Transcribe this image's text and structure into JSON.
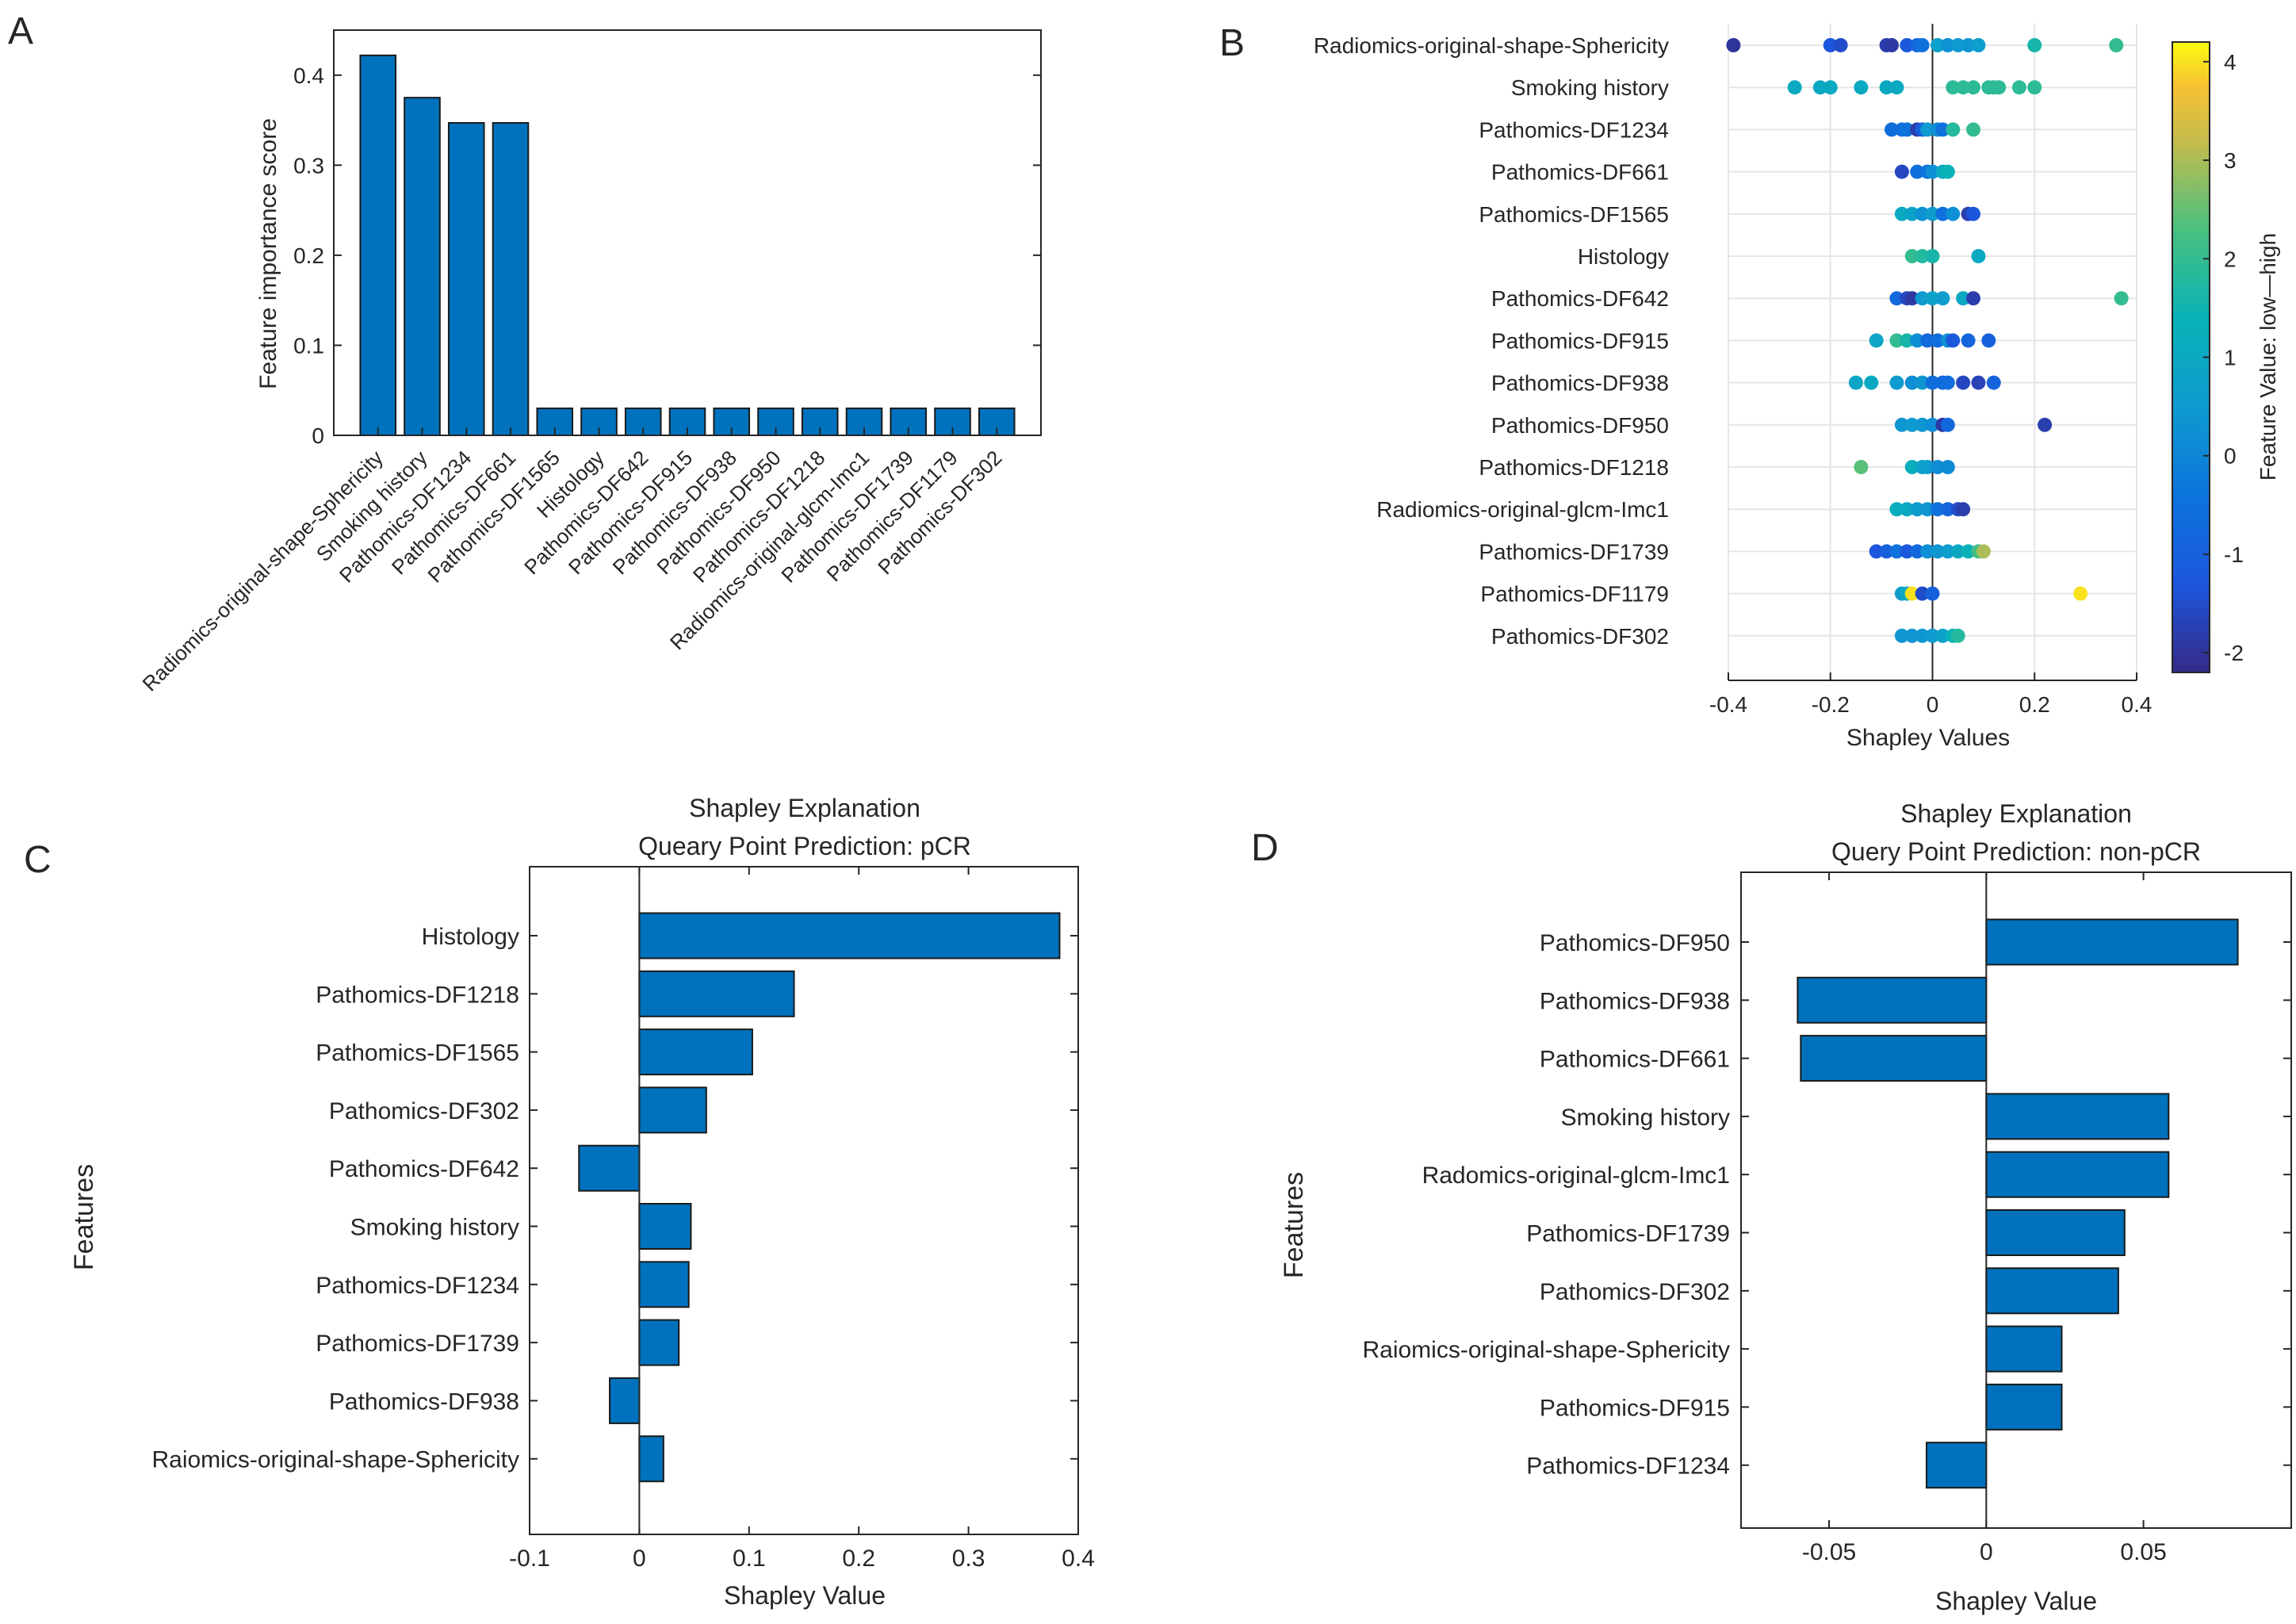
{
  "colors": {
    "bar": "#0072BD",
    "axis": "#262626",
    "grid": "#e6e6e6"
  },
  "panel_labels": [
    "A",
    "B",
    "C",
    "D"
  ],
  "chart_data": [
    {
      "panel": "A",
      "type": "bar",
      "title": "",
      "xlabel": "",
      "ylabel": "Feature importance score",
      "ylim": [
        0,
        0.45
      ],
      "yticks": [
        0,
        0.1,
        0.2,
        0.3,
        0.4
      ],
      "ytick_labels": [
        "0",
        "0.1",
        "0.2",
        "0.3",
        "0.4"
      ],
      "categories": [
        "Radiomics-original-shape-Sphericity",
        "Smoking history",
        "Pathomics-DF1234",
        "Pathomics-DF661",
        "Pathomics-DF1565",
        "Histology",
        "Pathomics-DF642",
        "Pathomics-DF915",
        "Pathomics-DF938",
        "Pathomics-DF950",
        "Pathomics-DF1218",
        "Radiomics-original-glcm-Imc1",
        "Pathomics-DF1739",
        "Pathomics-DF1179",
        "Pathomics-DF302"
      ],
      "values": [
        0.422,
        0.375,
        0.347,
        0.347,
        0.03,
        0.03,
        0.03,
        0.03,
        0.03,
        0.03,
        0.03,
        0.03,
        0.03,
        0.03,
        0.03
      ]
    },
    {
      "panel": "B",
      "type": "scatter",
      "title": "",
      "xlabel": "Shapley Values",
      "ylabel": "",
      "xlim": [
        -0.4,
        0.4
      ],
      "xticks": [
        -0.4,
        -0.2,
        0,
        0.2,
        0.4
      ],
      "xtick_labels": [
        "-0.4",
        "-0.2",
        "0",
        "0.2",
        "0.4"
      ],
      "colorbar": {
        "label": "Feature Value: low—high",
        "range": [
          -2.2,
          4.2
        ],
        "ticks": [
          -2,
          -1,
          0,
          1,
          2,
          3,
          4
        ],
        "tick_labels": [
          "-2",
          "-1",
          "0",
          "1",
          "2",
          "3",
          "4"
        ]
      },
      "categories": [
        "Radiomics-original-shape-Sphericity",
        "Smoking history",
        "Pathomics-DF1234",
        "Pathomics-DF661",
        "Pathomics-DF1565",
        "Histology",
        "Pathomics-DF642",
        "Pathomics-DF915",
        "Pathomics-DF938",
        "Pathomics-DF950",
        "Pathomics-DF1218",
        "Radiomics-original-glcm-Imc1",
        "Pathomics-DF1739",
        "Pathomics-DF1179",
        "Pathomics-DF302"
      ],
      "series": [
        {
          "name": "Radiomics-original-shape-Sphericity",
          "x": [
            -0.39,
            -0.2,
            -0.18,
            -0.09,
            -0.08,
            -0.05,
            -0.03,
            -0.02,
            0.01,
            0.03,
            0.05,
            0.07,
            0.09,
            0.2,
            0.36
          ],
          "c": [
            -2,
            -1.3,
            -1.5,
            -1.8,
            -1.9,
            -1.2,
            -0.8,
            -0.5,
            0.7,
            0.3,
            0.5,
            0.4,
            0.6,
            1.6,
            2.0
          ]
        },
        {
          "name": "Smoking history",
          "x": [
            -0.27,
            -0.22,
            -0.2,
            -0.14,
            -0.09,
            -0.07,
            0.04,
            0.06,
            0.08,
            0.11,
            0.12,
            0.13,
            0.17,
            0.2
          ],
          "c": [
            1.0,
            1.0,
            1.0,
            1.0,
            1.0,
            1.0,
            1.9,
            1.9,
            1.9,
            1.9,
            1.9,
            1.9,
            1.9,
            1.9
          ]
        },
        {
          "name": "Pathomics-DF1234",
          "x": [
            -0.08,
            -0.06,
            -0.05,
            -0.03,
            -0.02,
            -0.01,
            0.01,
            0.02,
            0.04,
            0.08
          ],
          "c": [
            -0.6,
            -0.6,
            -0.4,
            -1.8,
            -1.0,
            0.5,
            0.2,
            -0.5,
            1.8,
            2.0
          ]
        },
        {
          "name": "Pathomics-DF661",
          "x": [
            -0.06,
            -0.03,
            -0.01,
            0.0,
            0.02,
            0.03
          ],
          "c": [
            -1.6,
            -0.6,
            -0.4,
            0.2,
            1.0,
            1.4
          ]
        },
        {
          "name": "Pathomics-DF1565",
          "x": [
            -0.06,
            -0.04,
            -0.02,
            0.0,
            0.02,
            0.04,
            0.07,
            0.08
          ],
          "c": [
            1.0,
            0.8,
            0.3,
            0.6,
            -0.5,
            0.2,
            -1.8,
            -1.3
          ]
        },
        {
          "name": "Histology",
          "x": [
            -0.04,
            -0.02,
            0.0,
            0.09
          ],
          "c": [
            2.0,
            1.8,
            1.6,
            1.0
          ]
        },
        {
          "name": "Pathomics-DF642",
          "x": [
            -0.07,
            -0.05,
            -0.04,
            -0.02,
            0.0,
            0.02,
            0.06,
            0.08,
            0.37
          ],
          "c": [
            -0.8,
            -1.6,
            -1.9,
            0.5,
            0.8,
            0.6,
            1.0,
            -1.8,
            2.0
          ]
        },
        {
          "name": "Pathomics-DF915",
          "x": [
            -0.11,
            -0.07,
            -0.05,
            -0.03,
            -0.01,
            0.01,
            0.03,
            0.04,
            0.07,
            0.11
          ],
          "c": [
            0.9,
            2.0,
            1.6,
            0.2,
            -0.7,
            -0.6,
            0.3,
            -1.2,
            -0.9,
            -1.0
          ]
        },
        {
          "name": "Pathomics-DF938",
          "x": [
            -0.15,
            -0.12,
            -0.07,
            -0.04,
            -0.02,
            0.0,
            0.02,
            0.03,
            0.06,
            0.09,
            0.12
          ],
          "c": [
            0.9,
            1.0,
            0.5,
            0.2,
            0.4,
            -0.6,
            -0.7,
            -0.6,
            -1.6,
            -1.7,
            -0.9
          ]
        },
        {
          "name": "Pathomics-DF950",
          "x": [
            -0.06,
            -0.04,
            -0.02,
            0.0,
            0.02,
            0.03,
            0.22
          ],
          "c": [
            0.4,
            0.5,
            0.4,
            0.2,
            -1.9,
            -0.8,
            -1.8
          ]
        },
        {
          "name": "Pathomics-DF1218",
          "x": [
            -0.14,
            -0.04,
            -0.02,
            -0.01,
            0.01,
            0.03
          ],
          "c": [
            2.4,
            1.2,
            0.8,
            0.6,
            0.2,
            0.1
          ]
        },
        {
          "name": "Radiomics-original-glcm-Imc1",
          "x": [
            -0.07,
            -0.05,
            -0.03,
            -0.01,
            0.01,
            0.03,
            0.05,
            0.06
          ],
          "c": [
            1.2,
            1.0,
            0.6,
            0.4,
            -0.5,
            -0.9,
            -1.5,
            -1.8
          ]
        },
        {
          "name": "Pathomics-DF1739",
          "x": [
            -0.11,
            -0.09,
            -0.07,
            -0.05,
            -0.03,
            -0.01,
            0.01,
            0.03,
            0.05,
            0.07,
            0.09,
            0.1
          ],
          "c": [
            -1.3,
            -1.0,
            -0.5,
            -1.2,
            -0.8,
            0.2,
            0.4,
            0.6,
            1.0,
            1.4,
            2.2,
            3.0
          ]
        },
        {
          "name": "Pathomics-DF1179",
          "x": [
            -0.06,
            -0.05,
            -0.04,
            -0.02,
            0.0,
            0.29
          ],
          "c": [
            0.6,
            1.0,
            4.0,
            -1.5,
            -1.0,
            4.0
          ]
        },
        {
          "name": "Pathomics-DF302",
          "x": [
            -0.06,
            -0.04,
            -0.02,
            0.0,
            0.02,
            0.04,
            0.05
          ],
          "c": [
            0.4,
            0.4,
            0.4,
            0.5,
            0.8,
            1.4,
            1.8
          ]
        }
      ]
    },
    {
      "panel": "C",
      "type": "bar",
      "orientation": "horizontal",
      "title": "Shapley Explanation",
      "subtitle": "Queary Point Prediction: pCR",
      "xlabel": "Shapley Value",
      "ylabel": "Features",
      "xlim": [
        -0.1,
        0.4
      ],
      "xticks": [
        -0.1,
        0,
        0.1,
        0.2,
        0.3,
        0.4
      ],
      "xtick_labels": [
        "-0.1",
        "0",
        "0.1",
        "0.2",
        "0.3",
        "0.4"
      ],
      "categories": [
        "Histology",
        "Pathomics-DF1218",
        "Pathomics-DF1565",
        "Pathomics-DF302",
        "Pathomics-DF642",
        "Smoking history",
        "Pathomics-DF1234",
        "Pathomics-DF1739",
        "Pathomics-DF938",
        "Raiomics-original-shape-Sphericity"
      ],
      "values": [
        0.383,
        0.141,
        0.103,
        0.061,
        -0.055,
        0.047,
        0.045,
        0.036,
        -0.027,
        0.022
      ]
    },
    {
      "panel": "D",
      "type": "bar",
      "orientation": "horizontal",
      "title": "Shapley Explanation",
      "subtitle": "Query Point Prediction: non-pCR",
      "xlabel": "Shapley Value",
      "ylabel": "Features",
      "xlim": [
        -0.078,
        0.097
      ],
      "xticks": [
        -0.05,
        0,
        0.05
      ],
      "xtick_labels": [
        "-0.05",
        "0",
        "0.05"
      ],
      "categories": [
        "Pathomics-DF950",
        "Pathomics-DF938",
        "Pathomics-DF661",
        "Smoking history",
        "Radomics-original-glcm-Imc1",
        "Pathomics-DF1739",
        "Pathomics-DF302",
        "Raiomics-original-shape-Sphericity",
        "Pathomics-DF915",
        "Pathomics-DF1234"
      ],
      "values": [
        0.08,
        -0.06,
        -0.059,
        0.058,
        0.058,
        0.044,
        0.042,
        0.024,
        0.024,
        -0.019
      ]
    }
  ]
}
